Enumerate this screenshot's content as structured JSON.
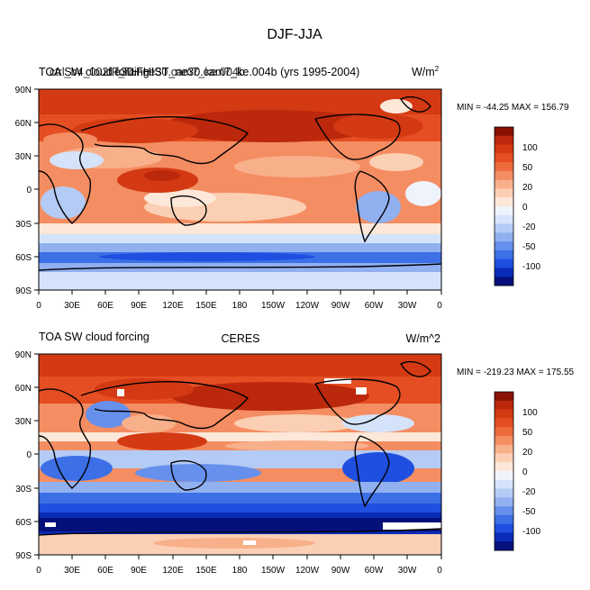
{
  "figure_title": "DJF-JJA",
  "chart_data": [
    {
      "type": "heatmap",
      "title_left": "TOA SW cloud forcing",
      "title_center": "ctrl_b4_002.F_TH ne30.cam7_ke.004b",
      "title_full": "TOA SW cloud forcing    ctrl_b4_002.F_TH    f.e30.FHIST_ne30.cam7_ke.004b (yrs 1995-2004)",
      "case_label": "f.e30.FHIST_ne30.cam7_ke.004b (yrs 1995-2004)",
      "units": "W/m",
      "units_sup": "2",
      "stats": "MIN = -44.25 MAX = 156.79",
      "min": -44.25,
      "max": 156.79,
      "xlabel": "",
      "ylabel": "",
      "x_ticks": [
        "0",
        "30E",
        "60E",
        "90E",
        "120E",
        "150E",
        "180",
        "150W",
        "120W",
        "90W",
        "60W",
        "30W",
        "0"
      ],
      "y_ticks": [
        "90N",
        "60N",
        "30N",
        "0",
        "30S",
        "60S",
        "90S"
      ],
      "xlim": [
        0,
        360
      ],
      "ylim": [
        -90,
        90
      ]
    },
    {
      "type": "heatmap",
      "title_left": "TOA SW cloud forcing",
      "title_center": "CERES",
      "units": "W/m^2",
      "stats": "MIN = -219.23 MAX = 175.55",
      "min": -219.23,
      "max": 175.55,
      "xlabel": "",
      "ylabel": "",
      "x_ticks": [
        "0",
        "30E",
        "60E",
        "90E",
        "120E",
        "150E",
        "180",
        "150W",
        "120W",
        "90W",
        "60W",
        "30W",
        "0"
      ],
      "y_ticks": [
        "90N",
        "60N",
        "30N",
        "0",
        "30S",
        "60S",
        "90S"
      ],
      "xlim": [
        0,
        360
      ],
      "ylim": [
        -90,
        90
      ]
    }
  ],
  "colorbar": {
    "levels": [
      -120,
      -100,
      -80,
      -60,
      -50,
      -40,
      -30,
      -20,
      -10,
      0,
      10,
      20,
      30,
      40,
      50,
      60,
      80,
      100,
      120
    ],
    "labels": [
      "100",
      "50",
      "20",
      "0",
      "-20",
      "-50",
      "-100"
    ],
    "colors": [
      "#05107a",
      "#0a2bb8",
      "#1f4fe0",
      "#3d6fe6",
      "#6790ec",
      "#90b0f0",
      "#b3cbf5",
      "#d4e3fa",
      "#eef3fc",
      "#fde7d8",
      "#fbcfb3",
      "#f8b08b",
      "#f48d62",
      "#ee6b3e",
      "#e54e22",
      "#d33a13",
      "#bb280c",
      "#8a1104"
    ]
  }
}
